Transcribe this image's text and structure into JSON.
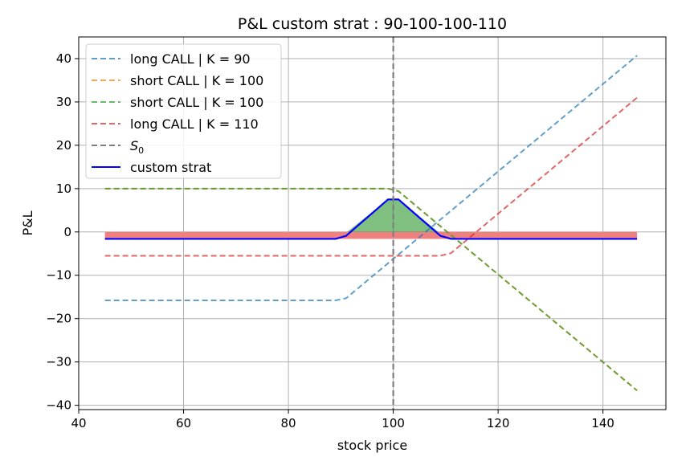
{
  "chart_data": {
    "type": "line",
    "title": "P&L custom strat : 90-100-100-110",
    "xlabel": "stock price",
    "ylabel": "P&L",
    "xlim": [
      40,
      152
    ],
    "ylim": [
      -41,
      45
    ],
    "xticks": [
      40,
      60,
      80,
      100,
      120,
      140
    ],
    "yticks": [
      -40,
      -30,
      -20,
      -10,
      0,
      10,
      20,
      30,
      40
    ],
    "xtick_labels": [
      "40",
      "60",
      "80",
      "100",
      "120",
      "140"
    ],
    "ytick_labels": [
      "−40",
      "−30",
      "−20",
      "−10",
      "0",
      "10",
      "20",
      "30",
      "40"
    ],
    "grid": true,
    "legend_position": "top-left",
    "vline": {
      "name": "S0",
      "label": "S",
      "label_sub": "0",
      "x": 100,
      "color": "#7f7f7f"
    },
    "series": [
      {
        "name": "long CALL | K = 90",
        "color": "#1f77b4",
        "dash": true,
        "points": [
          [
            45,
            -15.8
          ],
          [
            89,
            -15.8
          ],
          [
            91,
            -15.3
          ],
          [
            146.5,
            40.7
          ]
        ]
      },
      {
        "name": "short CALL | K = 100",
        "color": "#ff7f0e",
        "dash": true,
        "points": [
          [
            45,
            10
          ],
          [
            99,
            10
          ],
          [
            101,
            9.4
          ],
          [
            146.5,
            -36.6
          ]
        ]
      },
      {
        "name": "short CALL | K = 100",
        "color": "#2ca02c",
        "dash": true,
        "points": [
          [
            45,
            10
          ],
          [
            99,
            10
          ],
          [
            101,
            9.4
          ],
          [
            146.5,
            -36.6
          ]
        ]
      },
      {
        "name": "long CALL | K = 110",
        "color": "#d62728",
        "dash": true,
        "points": [
          [
            45,
            -5.5
          ],
          [
            109,
            -5.5
          ],
          [
            111,
            -4.9
          ],
          [
            146.5,
            31
          ]
        ]
      },
      {
        "name": "custom strat",
        "color": "#0000ff",
        "dash": false,
        "points": [
          [
            45,
            -1.6
          ],
          [
            89,
            -1.6
          ],
          [
            91,
            -0.9
          ],
          [
            99,
            7.5
          ],
          [
            101,
            7.5
          ],
          [
            109,
            -0.9
          ],
          [
            111,
            -1.6
          ],
          [
            146.5,
            -1.6
          ]
        ]
      }
    ],
    "fill_profit": {
      "color": "#008000",
      "points": [
        [
          91.2,
          0
        ],
        [
          99,
          7.5
        ],
        [
          101,
          7.5
        ],
        [
          108.6,
          0
        ]
      ]
    },
    "fill_loss": {
      "color": "#f08080",
      "x_range": [
        45,
        146.5
      ],
      "y_range": [
        -1.6,
        0
      ]
    }
  }
}
